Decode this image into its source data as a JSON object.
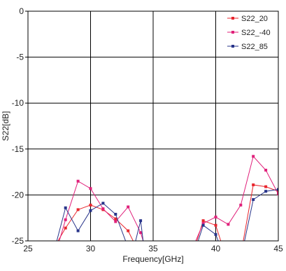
{
  "chart_data": {
    "type": "line",
    "title": "",
    "xlabel": "Frequency[GHz]",
    "ylabel": "S22[dB]",
    "xlim": [
      25,
      45
    ],
    "ylim": [
      -25,
      0
    ],
    "xticks": [
      25,
      30,
      35,
      40,
      45
    ],
    "yticks": [
      0,
      -5,
      -10,
      -15,
      -20,
      -25
    ],
    "grid": true,
    "legend_position": "top-right",
    "series": [
      {
        "name": "S22_20",
        "color": "#e8262e",
        "marker": "square",
        "segments": [
          [
            [
              27.4,
              -25
            ],
            [
              28,
              -23.6
            ],
            [
              29,
              -21.6
            ],
            [
              30,
              -21.1
            ],
            [
              31,
              -21.6
            ],
            [
              32,
              -22.6
            ],
            [
              33,
              -23.9
            ],
            [
              33.4,
              -25
            ]
          ],
          [
            [
              38.5,
              -25
            ],
            [
              39,
              -22.8
            ],
            [
              40,
              -23.3
            ],
            [
              40.4,
              -25
            ]
          ],
          [
            [
              42.2,
              -25
            ],
            [
              43,
              -18.9
            ],
            [
              44,
              -19.1
            ],
            [
              45,
              -19.6
            ]
          ]
        ]
      },
      {
        "name": "S22_-40",
        "color": "#e0207a",
        "marker": "square",
        "segments": [
          [
            [
              27.5,
              -25
            ],
            [
              28,
              -22.7
            ],
            [
              29,
              -18.5
            ],
            [
              30,
              -19.3
            ],
            [
              31,
              -21.5
            ],
            [
              32,
              -22.9
            ],
            [
              33,
              -21.3
            ],
            [
              34,
              -24.1
            ],
            [
              34.2,
              -25
            ]
          ],
          [
            [
              38.4,
              -25
            ],
            [
              39,
              -23.1
            ],
            [
              40,
              -22.4
            ],
            [
              41,
              -23.2
            ],
            [
              42,
              -21.1
            ],
            [
              43,
              -15.8
            ],
            [
              44,
              -17.3
            ],
            [
              45,
              -19.9
            ]
          ]
        ]
      },
      {
        "name": "S22_85",
        "color": "#28348a",
        "marker": "square",
        "segments": [
          [
            [
              27.3,
              -25
            ],
            [
              28,
              -21.4
            ],
            [
              29,
              -23.9
            ],
            [
              30,
              -21.7
            ],
            [
              31,
              -20.9
            ],
            [
              32,
              -22.1
            ],
            [
              32.8,
              -25
            ]
          ],
          [
            [
              33.6,
              -25
            ],
            [
              34,
              -22.8
            ],
            [
              34.2,
              -25
            ]
          ],
          [
            [
              38.6,
              -25
            ],
            [
              39,
              -23.3
            ],
            [
              40,
              -24.3
            ],
            [
              40.2,
              -25
            ]
          ],
          [
            [
              42.3,
              -25
            ],
            [
              43,
              -20.5
            ],
            [
              44,
              -19.6
            ],
            [
              45,
              -19.4
            ]
          ]
        ]
      }
    ]
  }
}
